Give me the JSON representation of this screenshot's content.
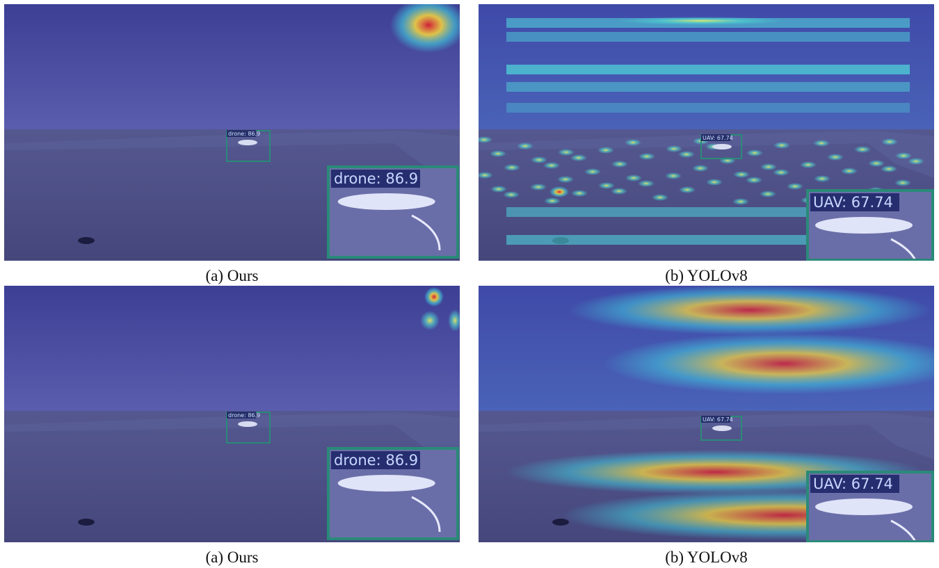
{
  "panels": [
    {
      "caption": "(a) Ours",
      "detection_label": "drone: 86.9"
    },
    {
      "caption": "(b) YOLOv8",
      "detection_label": "UAV: 67.74"
    },
    {
      "caption": "(a) Ours",
      "detection_label": "drone: 86.9"
    },
    {
      "caption": "(b) YOLOv8",
      "detection_label": "UAV: 67.74"
    }
  ]
}
